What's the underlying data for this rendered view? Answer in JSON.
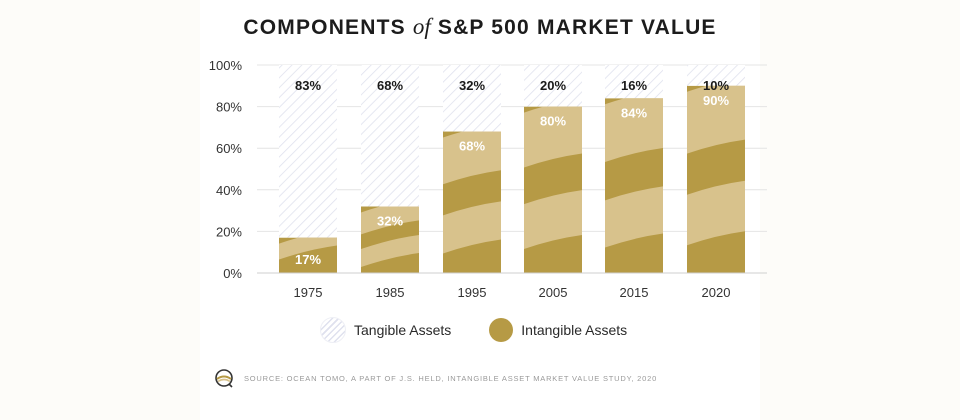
{
  "title": {
    "main": "COMPONENTS",
    "of": "of",
    "rest": "S&P 500 MARKET VALUE"
  },
  "chart_data": {
    "type": "bar",
    "stacked": true,
    "title": "COMPONENTS of S&P 500 MARKET VALUE",
    "categories": [
      "1975",
      "1985",
      "1995",
      "2005",
      "2015",
      "2020"
    ],
    "series": [
      {
        "name": "Intangible Assets",
        "values": [
          17,
          32,
          68,
          80,
          84,
          90
        ],
        "labels": [
          "17%",
          "32%",
          "68%",
          "80%",
          "84%",
          "90%"
        ]
      },
      {
        "name": "Tangible Assets",
        "values": [
          83,
          68,
          32,
          20,
          16,
          10
        ],
        "labels": [
          "83%",
          "68%",
          "32%",
          "20%",
          "16%",
          "10%"
        ]
      }
    ],
    "yticks": [
      "0%",
      "20%",
      "40%",
      "60%",
      "80%",
      "100%"
    ],
    "ylim": [
      0,
      100
    ],
    "grid": true,
    "legend": "bottom"
  },
  "legend": {
    "tangible": "Tangible Assets",
    "intangible": "Intangible Assets"
  },
  "colors": {
    "intangible_dark": "#b69a45",
    "intangible_light": "#d8c28c",
    "tangible_stripe": "#dfe1ee"
  },
  "source": "SOURCE: OCEAN TOMO, A PART OF J.S. HELD, INTANGIBLE ASSET MARKET VALUE STUDY, 2020"
}
